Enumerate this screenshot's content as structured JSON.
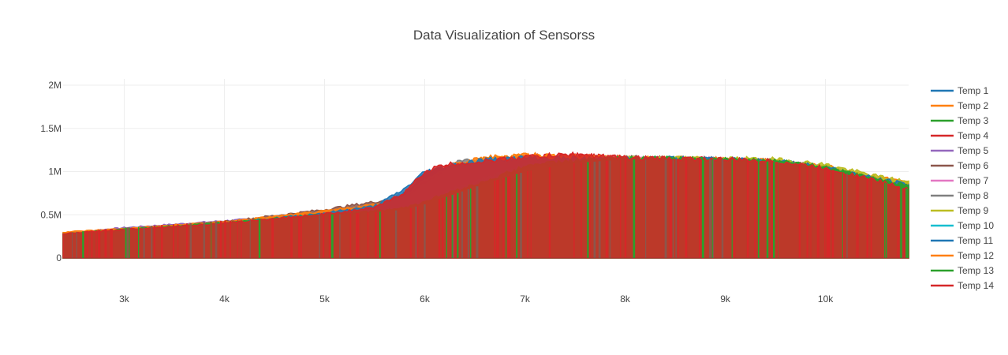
{
  "chart_data": {
    "type": "line",
    "title": "Data Visualization of Sensorss",
    "xlabel": "",
    "ylabel": "",
    "xlim": [
      2390,
      10830
    ],
    "ylim": [
      0,
      2000000
    ],
    "x_ticks": [
      3000,
      4000,
      5000,
      6000,
      7000,
      8000,
      9000,
      10000
    ],
    "x_tick_labels": [
      "3k",
      "4k",
      "5k",
      "6k",
      "7k",
      "8k",
      "9k",
      "10k"
    ],
    "y_ticks": [
      0,
      500000,
      1000000,
      1500000,
      2000000
    ],
    "y_tick_labels": [
      "0",
      "0.5M",
      "1M",
      "1.5M",
      "2M"
    ],
    "grid": true,
    "legend_position": "right",
    "fill_to_zero": true,
    "series": [
      {
        "name": "Temp 1",
        "color": "#1f77b4",
        "x": [
          2400,
          3000,
          4000,
          5000,
          5500,
          5800,
          6000,
          6300,
          6600,
          7000,
          7500,
          8000,
          8500,
          9000,
          9500,
          10000,
          10500,
          10830
        ],
        "y": [
          260000,
          320000,
          400000,
          520000,
          600000,
          800000,
          1000000,
          1080000,
          1140000,
          1160000,
          1150000,
          1150000,
          1150000,
          1140000,
          1130000,
          1050000,
          920000,
          850000
        ]
      },
      {
        "name": "Temp 2",
        "color": "#ff7f0e",
        "x": [
          2400,
          3000,
          4000,
          5000,
          5500,
          5800,
          6000,
          6300,
          6600,
          7000,
          7500,
          8000,
          8500,
          9000,
          9500,
          10000,
          10500,
          10830
        ],
        "y": [
          300000,
          340000,
          420000,
          540000,
          620000,
          720000,
          900000,
          1080000,
          1160000,
          1200000,
          1170000,
          1150000,
          1150000,
          1140000,
          1120000,
          1060000,
          940000,
          870000
        ]
      },
      {
        "name": "Temp 3",
        "color": "#2ca02c",
        "x": [
          2400,
          3000,
          4000,
          5000,
          5500,
          5800,
          6000,
          6300,
          6600,
          7000,
          7500,
          8000,
          8500,
          9000,
          9500,
          10000,
          10500,
          10830
        ],
        "y": [
          280000,
          330000,
          410000,
          500000,
          540000,
          580000,
          650000,
          780000,
          880000,
          1050000,
          1120000,
          1150000,
          1150000,
          1140000,
          1120000,
          1050000,
          910000,
          820000
        ]
      },
      {
        "name": "Temp 4",
        "color": "#d62728",
        "x": [
          2400,
          3000,
          4000,
          5000,
          5500,
          5800,
          6000,
          6200,
          6600,
          7000,
          7500,
          8000,
          8500,
          9000,
          9500,
          10000,
          10500,
          10830
        ],
        "y": [
          280000,
          330000,
          400000,
          510000,
          580000,
          750000,
          980000,
          1050000,
          1100000,
          1170000,
          1190000,
          1160000,
          1150000,
          1140000,
          1120000,
          1040000,
          900000,
          800000
        ]
      },
      {
        "name": "Temp 5",
        "color": "#9467bd",
        "x": [
          2400,
          3000,
          4000,
          5000,
          5500,
          5800,
          6000,
          6300,
          6600,
          7000,
          7500,
          8000,
          8500,
          9000,
          9500,
          10000,
          10500,
          10830
        ],
        "y": [
          290000,
          350000,
          430000,
          500000,
          530000,
          560000,
          620000,
          740000,
          860000,
          1000000,
          1100000,
          1140000,
          1140000,
          1140000,
          1110000,
          1040000,
          900000,
          800000
        ]
      },
      {
        "name": "Temp 6",
        "color": "#8c564b",
        "x": [
          2400,
          3000,
          4000,
          5000,
          5500,
          5800,
          6000,
          6300,
          6600,
          7000,
          7500,
          8000,
          8500,
          9000,
          9500,
          10000,
          10500,
          10830
        ],
        "y": [
          270000,
          330000,
          420000,
          560000,
          650000,
          700000,
          820000,
          1000000,
          1100000,
          1150000,
          1160000,
          1160000,
          1150000,
          1140000,
          1120000,
          1050000,
          910000,
          820000
        ]
      },
      {
        "name": "Temp 7",
        "color": "#e377c2",
        "x": [
          2400,
          3000,
          4000,
          5000,
          5500,
          5800,
          6000,
          6300,
          6600,
          7000,
          7500,
          8000,
          8500,
          9000,
          9500,
          10000,
          10500,
          10830
        ],
        "y": [
          270000,
          320000,
          400000,
          500000,
          560000,
          760000,
          850000,
          950000,
          1060000,
          1130000,
          1150000,
          1150000,
          1150000,
          1140000,
          1120000,
          1050000,
          910000,
          830000
        ]
      },
      {
        "name": "Temp 8",
        "color": "#7f7f7f",
        "x": [
          2400,
          3000,
          4000,
          5000,
          5500,
          5800,
          6000,
          6300,
          6600,
          7000,
          7500,
          8000,
          8500,
          9000,
          9500,
          10000,
          10500,
          10830
        ],
        "y": [
          270000,
          320000,
          400000,
          500000,
          560000,
          640000,
          800000,
          1100000,
          1150000,
          1160000,
          1160000,
          1160000,
          1150000,
          1140000,
          1120000,
          1050000,
          920000,
          840000
        ]
      },
      {
        "name": "Temp 9",
        "color": "#bcbd22",
        "x": [
          2400,
          3000,
          4000,
          5000,
          5500,
          5800,
          6000,
          6300,
          6600,
          7000,
          7500,
          8000,
          8500,
          9000,
          9500,
          10000,
          10500,
          10830
        ],
        "y": [
          270000,
          320000,
          400000,
          500000,
          540000,
          580000,
          660000,
          800000,
          920000,
          1080000,
          1130000,
          1150000,
          1150000,
          1150000,
          1140000,
          1080000,
          950000,
          880000
        ]
      },
      {
        "name": "Temp 10",
        "color": "#17becf",
        "x": [
          2400,
          3000,
          4000,
          5000,
          5500,
          5800,
          6000,
          6300,
          6600,
          7000,
          7500,
          8000,
          8500,
          9000,
          9500,
          10000,
          10500,
          10830
        ],
        "y": [
          270000,
          320000,
          400000,
          500000,
          540000,
          600000,
          700000,
          820000,
          900000,
          1050000,
          1120000,
          1150000,
          1150000,
          1140000,
          1120000,
          1050000,
          910000,
          830000
        ]
      },
      {
        "name": "Temp 11",
        "color": "#1f77b4",
        "x": [
          2400,
          3000,
          4000,
          5000,
          5500,
          5800,
          6000,
          6300,
          6600,
          7000,
          7500,
          8000,
          8500,
          9000,
          9500,
          10000,
          10500,
          10830
        ],
        "y": [
          270000,
          320000,
          400000,
          500000,
          550000,
          620000,
          720000,
          850000,
          960000,
          1080000,
          1140000,
          1150000,
          1150000,
          1140000,
          1120000,
          1050000,
          910000,
          830000
        ]
      },
      {
        "name": "Temp 12",
        "color": "#ff7f0e",
        "x": [
          2400,
          3000,
          4000,
          5000,
          5500,
          5800,
          6000,
          6300,
          6600,
          7000,
          7500,
          8000,
          8500,
          9000,
          9500,
          10000,
          10500,
          10830
        ],
        "y": [
          280000,
          330000,
          410000,
          520000,
          580000,
          680000,
          860000,
          1060000,
          1150000,
          1180000,
          1170000,
          1160000,
          1150000,
          1140000,
          1120000,
          1050000,
          920000,
          840000
        ]
      },
      {
        "name": "Temp 13",
        "color": "#2ca02c",
        "x": [
          2400,
          3000,
          4000,
          5000,
          5500,
          5800,
          6000,
          6300,
          6600,
          7000,
          7500,
          8000,
          8500,
          9000,
          9500,
          10000,
          10500,
          10830
        ],
        "y": [
          270000,
          320000,
          400000,
          500000,
          540000,
          580000,
          640000,
          760000,
          880000,
          1060000,
          1130000,
          1150000,
          1150000,
          1140000,
          1120000,
          1050000,
          910000,
          830000
        ]
      },
      {
        "name": "Temp 14",
        "color": "#d62728",
        "x": [
          2400,
          3000,
          4000,
          5000,
          5500,
          5800,
          6000,
          6200,
          6600,
          7000,
          7500,
          8000,
          8500,
          9000,
          9500,
          10000,
          10500,
          10830
        ],
        "y": [
          280000,
          330000,
          400000,
          510000,
          580000,
          760000,
          1000000,
          1080000,
          1120000,
          1170000,
          1200000,
          1160000,
          1150000,
          1140000,
          1120000,
          1040000,
          900000,
          800000
        ]
      }
    ]
  }
}
